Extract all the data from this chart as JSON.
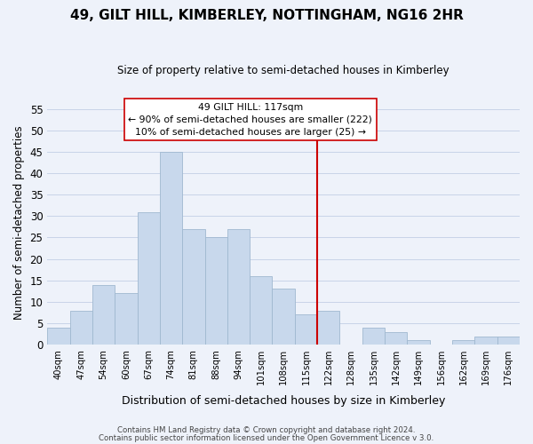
{
  "title": "49, GILT HILL, KIMBERLEY, NOTTINGHAM, NG16 2HR",
  "subtitle": "Size of property relative to semi-detached houses in Kimberley",
  "xlabel": "Distribution of semi-detached houses by size in Kimberley",
  "ylabel": "Number of semi-detached properties",
  "bar_color": "#c8d8ec",
  "bar_edge_color": "#a0b8d0",
  "categories": [
    "40sqm",
    "47sqm",
    "54sqm",
    "60sqm",
    "67sqm",
    "74sqm",
    "81sqm",
    "88sqm",
    "94sqm",
    "101sqm",
    "108sqm",
    "115sqm",
    "122sqm",
    "128sqm",
    "135sqm",
    "142sqm",
    "149sqm",
    "156sqm",
    "162sqm",
    "169sqm",
    "176sqm"
  ],
  "values": [
    4,
    8,
    14,
    12,
    31,
    45,
    27,
    25,
    27,
    16,
    13,
    7,
    8,
    0,
    4,
    3,
    1,
    0,
    1,
    2,
    2
  ],
  "ylim": [
    0,
    57
  ],
  "yticks": [
    0,
    5,
    10,
    15,
    20,
    25,
    30,
    35,
    40,
    45,
    50,
    55
  ],
  "vline_x": 11.5,
  "vline_color": "#cc0000",
  "annotation_title": "49 GILT HILL: 117sqm",
  "annotation_line1": "← 90% of semi-detached houses are smaller (222)",
  "annotation_line2": "10% of semi-detached houses are larger (25) →",
  "footer1": "Contains HM Land Registry data © Crown copyright and database right 2024.",
  "footer2": "Contains public sector information licensed under the Open Government Licence v 3.0.",
  "grid_color": "#c8d4e8",
  "background_color": "#eef2fa"
}
